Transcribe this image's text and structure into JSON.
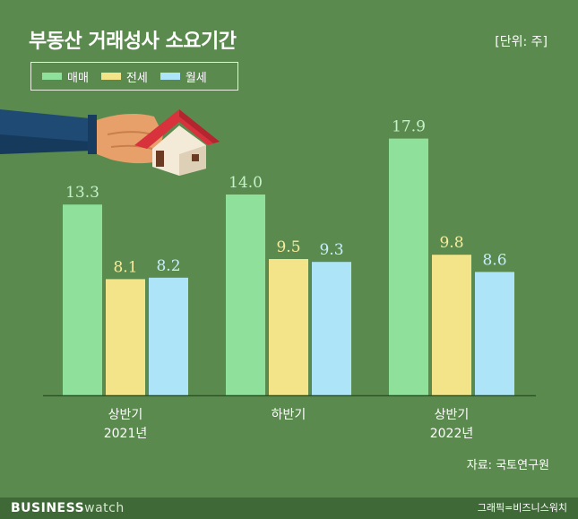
{
  "title": "부동산 거래성사 소요기간",
  "unit": "[단위: 주]",
  "source": "자료: 국토연구원",
  "footer": {
    "brand_bold": "BUSINESS",
    "brand_light": "watch",
    "credit": "그래픽=비즈니스워치"
  },
  "colors": {
    "background": "#5b8a4f",
    "sale": "#8fe09a",
    "jeonse": "#f3e48a",
    "monthly": "#aee4f8",
    "value_sale": "#c5f2c6",
    "value_jeonse": "#f7ec9c",
    "value_monthly": "#c9eefb"
  },
  "chart_data": {
    "type": "bar",
    "title": "부동산 거래성사 소요기간",
    "unit": "주",
    "categories": [
      [
        "상반기",
        "2021년"
      ],
      [
        "하반기"
      ],
      [
        "상반기",
        "2022년"
      ]
    ],
    "series": [
      {
        "name": "매매",
        "values": [
          13.3,
          14.0,
          17.9
        ]
      },
      {
        "name": "전세",
        "values": [
          8.1,
          9.5,
          9.8
        ]
      },
      {
        "name": "월세",
        "values": [
          8.2,
          9.3,
          8.6
        ]
      }
    ],
    "value_labels": [
      [
        "13.3",
        "14.0",
        "17.9"
      ],
      [
        "8.1",
        "9.5",
        "9.8"
      ],
      [
        "8.2",
        "9.3",
        "8.6"
      ]
    ],
    "ylim": [
      0,
      20
    ],
    "grid": false,
    "legend": "top-left"
  }
}
